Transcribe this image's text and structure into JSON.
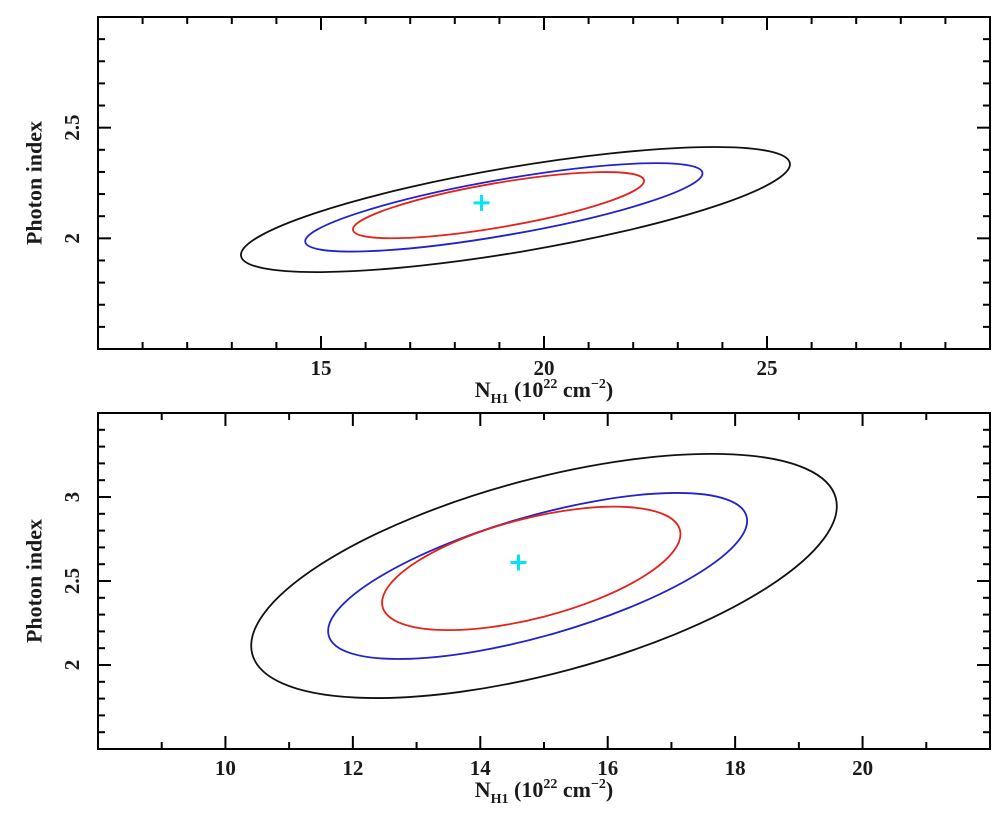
{
  "figure": {
    "background": "#ffffff",
    "axis_color": "#000000",
    "text_color": "#1a1a1a",
    "marker_color": "#00e5f5",
    "sigma1_color": "#e3231c",
    "sigma2_color": "#2222cc",
    "sigma3_color": "#111111"
  },
  "chart_data": [
    {
      "type": "contour",
      "panel": "top",
      "xlabel": "N_H1 (10^22 cm^-2)",
      "xlabel_parts": [
        {
          "t": "N",
          "style": "normal"
        },
        {
          "t": "H1",
          "style": "sub"
        },
        {
          "t": " (10",
          "style": "normal"
        },
        {
          "t": "22",
          "style": "sup"
        },
        {
          "t": " cm",
          "style": "normal"
        },
        {
          "t": "−2",
          "style": "sup"
        },
        {
          "t": ")",
          "style": "normal"
        }
      ],
      "ylabel": "Photon index",
      "xlim": [
        10,
        30
      ],
      "ylim": [
        1.5,
        3.0
      ],
      "x_major_ticks": [
        15,
        20,
        25
      ],
      "x_minor_step": 1,
      "y_major_ticks": [
        2,
        2.5
      ],
      "y_minor_step": 0.1,
      "best_fit": {
        "x": 18.6,
        "y": 2.16
      },
      "contours": [
        {
          "level": "1-sigma",
          "color": "#e3231c",
          "cx": 18.98,
          "cy": 2.15,
          "a": 3.31,
          "b": 0.1,
          "tilt_deg": 9.7
        },
        {
          "level": "2-sigma",
          "color": "#2222cc",
          "cx": 19.1,
          "cy": 2.14,
          "a": 4.52,
          "b": 0.126,
          "tilt_deg": 9.9
        },
        {
          "level": "3-sigma",
          "color": "#111111",
          "cx": 19.36,
          "cy": 2.13,
          "a": 6.24,
          "b": 0.192,
          "tilt_deg": 9.6
        }
      ]
    },
    {
      "type": "contour",
      "panel": "bottom",
      "xlabel": "N_H1 (10^22 cm^-2)",
      "xlabel_parts": [
        {
          "t": "N",
          "style": "normal"
        },
        {
          "t": "H1",
          "style": "sub"
        },
        {
          "t": " (10",
          "style": "normal"
        },
        {
          "t": "22",
          "style": "sup"
        },
        {
          "t": " cm",
          "style": "normal"
        },
        {
          "t": "−2",
          "style": "sup"
        },
        {
          "t": ")",
          "style": "normal"
        }
      ],
      "ylabel": "Photon index",
      "xlim": [
        8,
        22
      ],
      "ylim": [
        1.5,
        3.5
      ],
      "x_major_ticks": [
        10,
        12,
        14,
        16,
        18,
        20
      ],
      "x_minor_step": 1,
      "y_major_ticks": [
        2,
        2.5,
        3
      ],
      "y_minor_step": 0.1,
      "best_fit": {
        "x": 14.6,
        "y": 2.61
      },
      "contours": [
        {
          "level": "1-sigma",
          "color": "#e3231c",
          "cx": 14.8,
          "cy": 2.575,
          "a": 2.41,
          "b": 0.297,
          "tilt_deg": 14.5
        },
        {
          "level": "2-sigma",
          "color": "#2222cc",
          "cx": 14.9,
          "cy": 2.53,
          "a": 3.41,
          "b": 0.356,
          "tilt_deg": 16.0
        },
        {
          "level": "3-sigma",
          "color": "#111111",
          "cx": 15.0,
          "cy": 2.53,
          "a": 4.74,
          "b": 0.578,
          "tilt_deg": 15.0
        }
      ]
    }
  ]
}
